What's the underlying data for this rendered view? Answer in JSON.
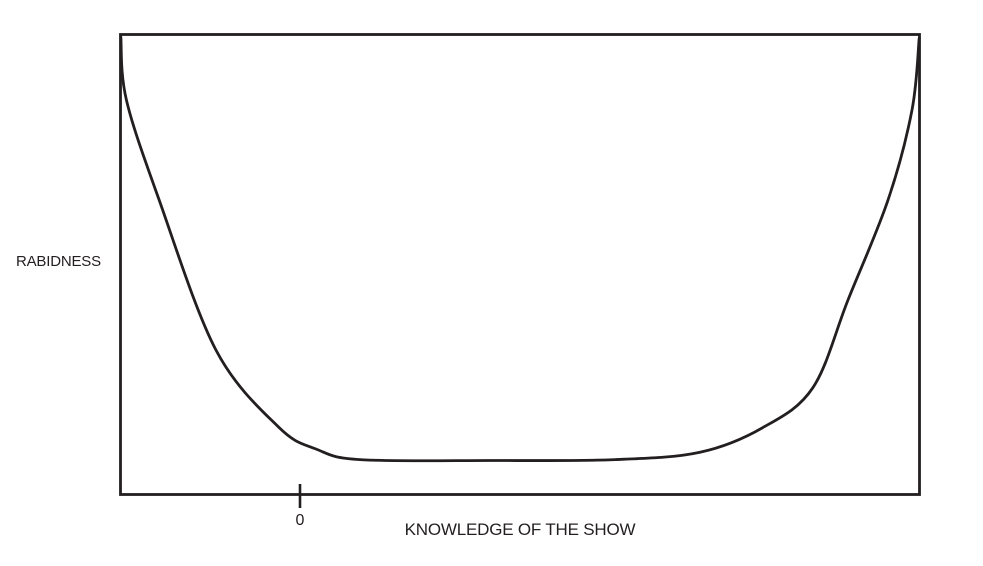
{
  "figure": {
    "background": "#ffffff",
    "ink_color": "#231f20"
  },
  "chart_data": {
    "type": "line",
    "title": "",
    "xlabel": "KNOWLEDGE OF THE SHOW",
    "ylabel": "RABIDNESS",
    "grid": false,
    "legend": false,
    "frame": "full-box",
    "x_axis": {
      "ticks": [
        {
          "label": "0",
          "x_percent": 22.5
        }
      ]
    },
    "y_axis": {
      "ticks": []
    },
    "series": [
      {
        "name": "rabidness-vs-knowledge",
        "shape": "bathtub-curve",
        "points_percent": [
          [
            0.1,
            99.6
          ],
          [
            0.8,
            85.9
          ],
          [
            4.9,
            64.1
          ],
          [
            12.0,
            31.5
          ],
          [
            19.8,
            14.8
          ],
          [
            24.5,
            10.0
          ],
          [
            30.0,
            7.7
          ],
          [
            46.3,
            7.5
          ],
          [
            61.9,
            7.7
          ],
          [
            72.5,
            9.3
          ],
          [
            80.3,
            14.6
          ],
          [
            86.6,
            23.3
          ],
          [
            91.0,
            42.4
          ],
          [
            96.0,
            64.1
          ],
          [
            99.0,
            83.7
          ],
          [
            99.9,
            99.3
          ]
        ]
      }
    ]
  }
}
